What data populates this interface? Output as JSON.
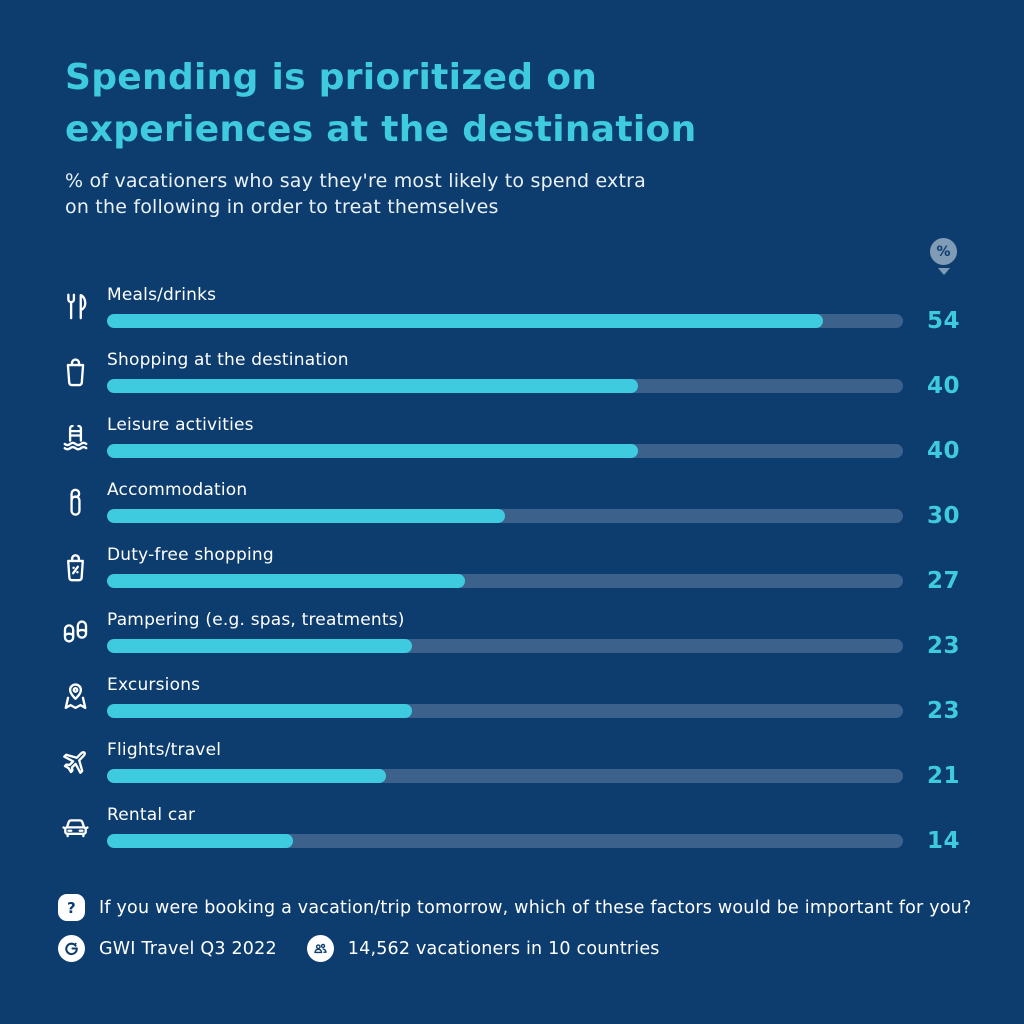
{
  "header": {
    "title_lines": [
      "Spending is prioritized on",
      "experiences at the destination"
    ],
    "subtitle_lines": [
      "% of vacationers who say they're most likely to spend extra",
      "on the following in order to treat themselves"
    ]
  },
  "chart_data": {
    "type": "bar",
    "orientation": "horizontal",
    "title": "Spending is prioritized on experiences at the destination",
    "subtitle": "% of vacationers who say they're most likely to spend extra on the following in order to treat themselves",
    "unit": "%",
    "categories": [
      "Meals/drinks",
      "Shopping at the destination",
      "Leisure activities",
      "Accommodation",
      "Duty-free shopping",
      "Pampering (e.g. spas, treatments)",
      "Excursions",
      "Flights/travel",
      "Rental car"
    ],
    "values": [
      54,
      40,
      40,
      30,
      27,
      23,
      23,
      21,
      14
    ],
    "icons": [
      "cutlery-icon",
      "shopping-bag-icon",
      "pool-ladder-icon",
      "door-hanger-icon",
      "duty-free-bag-icon",
      "slippers-icon",
      "map-pin-icon",
      "airplane-icon",
      "car-icon"
    ],
    "xlim": [
      0,
      60
    ],
    "grid": false,
    "legend": false,
    "value_labels_position": "right"
  },
  "footer": {
    "question_mark": "?",
    "question": "If you were booking a vacation/trip tomorrow, which of these factors would be important for you?",
    "source": "GWI Travel Q3 2022",
    "sample": "14,562 vacationers in 10 countries"
  },
  "colors": {
    "background": "#0d3d6f",
    "accent": "#3fcbdf",
    "track": "#3c628c",
    "text": "#ffffff",
    "badge": "#7f9bb6"
  }
}
